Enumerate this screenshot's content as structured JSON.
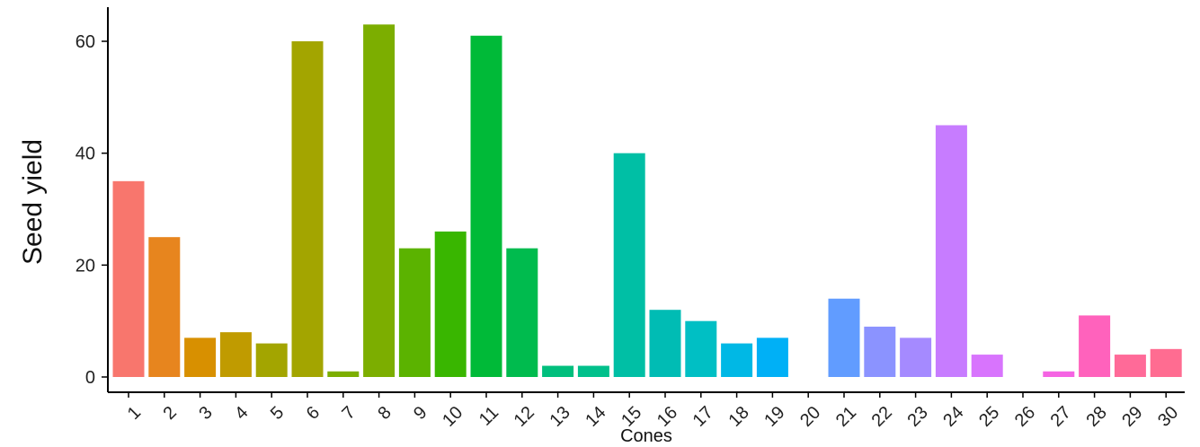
{
  "chart_data": {
    "type": "bar",
    "xlabel": "Cones",
    "ylabel": "Seed yield",
    "ylim": [
      0,
      66
    ],
    "yticks": [
      0,
      20,
      40,
      60
    ],
    "grid": false,
    "legend": "none",
    "categories": [
      "1",
      "2",
      "3",
      "4",
      "5",
      "6",
      "7",
      "8",
      "9",
      "10",
      "11",
      "12",
      "13",
      "14",
      "15",
      "16",
      "17",
      "18",
      "19",
      "20",
      "21",
      "22",
      "23",
      "24",
      "25",
      "26",
      "27",
      "28",
      "29",
      "30"
    ],
    "values": [
      35,
      25,
      7,
      8,
      6,
      60,
      1,
      63,
      23,
      26,
      61,
      23,
      2,
      2,
      40,
      12,
      10,
      6,
      7,
      0,
      14,
      9,
      7,
      45,
      4,
      0,
      1,
      11,
      4,
      5
    ],
    "colors": [
      "#F8766D",
      "#E7851E",
      "#D89000",
      "#C09B00",
      "#A3A500",
      "#A3A500",
      "#7CAE00",
      "#7CAE00",
      "#5BB300",
      "#39B600",
      "#00BA38",
      "#00BB4E",
      "#00BF7D",
      "#00C08B",
      "#00BFA5",
      "#00BCB4",
      "#00BFC4",
      "#00B8E5",
      "#00B0F6",
      "#35A2FF",
      "#619CFF",
      "#8B93FF",
      "#A58AFF",
      "#C77CFF",
      "#D874FD",
      "#E76BF3",
      "#F564E3",
      "#FF62BC",
      "#FF6A98",
      "#FF6C91"
    ]
  }
}
